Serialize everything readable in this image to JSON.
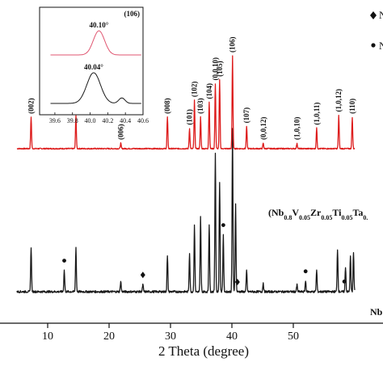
{
  "chart_data": {
    "type": "line",
    "title": "",
    "xlabel": "2 Theta (degree)",
    "ylabel": "",
    "xlim": [
      5,
      60
    ],
    "x_ticks": [
      "10",
      "20",
      "30",
      "40",
      "50"
    ],
    "colors": {
      "top": "#dd1c1c",
      "bottom": "#1a1a1a",
      "axis": "#111111"
    },
    "legend": {
      "entries": [
        {
          "marker": "diamond",
          "label": "N"
        },
        {
          "marker": "dot",
          "label": "N"
        }
      ],
      "placement": "top-right, clipped"
    },
    "series": [
      {
        "label": "(Nb0.8V0.05Zr0.05Ti0.05Ta0.",
        "label_parts": [
          {
            "text": "(Nb",
            "sub": false
          },
          {
            "text": "0.8",
            "sub": true
          },
          {
            "text": "V",
            "sub": false
          },
          {
            "text": "0.05",
            "sub": true
          },
          {
            "text": "Zr",
            "sub": false
          },
          {
            "text": "0.05",
            "sub": true
          },
          {
            "text": "Ti",
            "sub": false
          },
          {
            "text": "0.05",
            "sub": true
          },
          {
            "text": "Ta",
            "sub": false
          },
          {
            "text": "0.",
            "sub": true
          }
        ],
        "color": "#dd1c1c",
        "baseline": 0.07,
        "peaks": [
          {
            "x": 7.3,
            "intensity": 0.34,
            "hkl": "(002)"
          },
          {
            "x": 14.6,
            "intensity": 0.36,
            "hkl": "(004)"
          },
          {
            "x": 21.9,
            "intensity": 0.06,
            "hkl": "(006)"
          },
          {
            "x": 29.5,
            "intensity": 0.34,
            "hkl": "(008)"
          },
          {
            "x": 33.1,
            "intensity": 0.22,
            "hkl": "(101)"
          },
          {
            "x": 33.9,
            "intensity": 0.52,
            "hkl": "(102)"
          },
          {
            "x": 34.9,
            "intensity": 0.34,
            "hkl": "(103)"
          },
          {
            "x": 36.3,
            "intensity": 0.5,
            "hkl": "(104)"
          },
          {
            "x": 37.3,
            "intensity": 0.7,
            "hkl": "(0,0,10)"
          },
          {
            "x": 38.0,
            "intensity": 0.74,
            "hkl": "(105)"
          },
          {
            "x": 40.1,
            "intensity": 1.0,
            "hkl": "(106)"
          },
          {
            "x": 42.4,
            "intensity": 0.24,
            "hkl": "(107)"
          },
          {
            "x": 45.1,
            "intensity": 0.06,
            "hkl": "(0,0,12)"
          },
          {
            "x": 50.6,
            "intensity": 0.06,
            "hkl": "(1,0,10)"
          },
          {
            "x": 53.8,
            "intensity": 0.22,
            "hkl": "(1,0,11)"
          },
          {
            "x": 57.4,
            "intensity": 0.36,
            "hkl": "(1,0,12)"
          },
          {
            "x": 59.6,
            "intensity": 0.34,
            "hkl": "(110)"
          }
        ]
      },
      {
        "label": "Nb",
        "color": "#1a1a1a",
        "baseline": 0.05,
        "peaks": [
          {
            "x": 7.3,
            "intensity": 0.25
          },
          {
            "x": 12.7,
            "intensity": 0.12
          },
          {
            "x": 14.6,
            "intensity": 0.25
          },
          {
            "x": 21.9,
            "intensity": 0.06
          },
          {
            "x": 25.5,
            "intensity": 0.04
          },
          {
            "x": 29.5,
            "intensity": 0.2
          },
          {
            "x": 33.1,
            "intensity": 0.22
          },
          {
            "x": 33.9,
            "intensity": 0.38
          },
          {
            "x": 34.9,
            "intensity": 0.42
          },
          {
            "x": 36.3,
            "intensity": 0.38
          },
          {
            "x": 37.3,
            "intensity": 0.78
          },
          {
            "x": 38.0,
            "intensity": 0.62
          },
          {
            "x": 38.6,
            "intensity": 0.32
          },
          {
            "x": 40.1,
            "intensity": 0.92
          },
          {
            "x": 40.6,
            "intensity": 0.5
          },
          {
            "x": 42.4,
            "intensity": 0.12
          },
          {
            "x": 45.1,
            "intensity": 0.05
          },
          {
            "x": 50.6,
            "intensity": 0.04
          },
          {
            "x": 52.0,
            "intensity": 0.06
          },
          {
            "x": 53.8,
            "intensity": 0.12
          },
          {
            "x": 57.2,
            "intensity": 0.24
          },
          {
            "x": 58.5,
            "intensity": 0.14
          },
          {
            "x": 59.3,
            "intensity": 0.2
          },
          {
            "x": 59.8,
            "intensity": 0.22
          }
        ],
        "markers": [
          {
            "x": 12.7,
            "type": "dot"
          },
          {
            "x": 25.5,
            "type": "diamond"
          },
          {
            "x": 38.6,
            "type": "dot"
          },
          {
            "x": 40.9,
            "type": "diamond"
          },
          {
            "x": 52.0,
            "type": "dot"
          },
          {
            "x": 58.3,
            "type": "dot"
          }
        ]
      }
    ],
    "inset": {
      "hkl_label": "(106)",
      "xlim": [
        39.5,
        40.6
      ],
      "x_ticks": [
        "39.6",
        "39.8",
        "40.0",
        "40.2",
        "40.4",
        "40.6"
      ],
      "series": [
        {
          "color": "#e05570",
          "peak_x": 40.1,
          "peak_label": "40.10°"
        },
        {
          "color": "#1a1a1a",
          "peak_x": 40.04,
          "peak_label": "40.04°"
        }
      ]
    }
  }
}
